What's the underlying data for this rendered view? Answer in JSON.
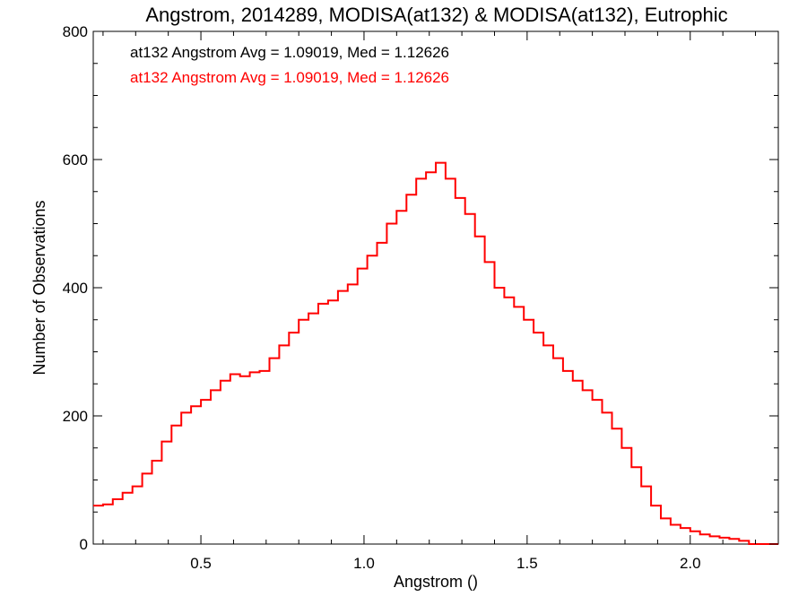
{
  "chart_data": {
    "type": "line",
    "step": true,
    "title": "Angstrom, 2014289, MODISA(at132) & MODISA(at132), Eutrophic",
    "xlabel": "Angstrom ()",
    "ylabel": "Number of Observations",
    "xlim": [
      0.17,
      2.27
    ],
    "ylim": [
      0,
      800
    ],
    "xticks": [
      0.5,
      1.0,
      1.5,
      2.0
    ],
    "xtick_labels": [
      "0.5",
      "1.0",
      "1.5",
      "2.0"
    ],
    "yticks": [
      0,
      200,
      400,
      600,
      800
    ],
    "ytick_labels": [
      "0",
      "200",
      "400",
      "600",
      "800"
    ],
    "grid": false,
    "annotations": [
      {
        "text": "at132 Angstrom Avg = 1.09019, Med = 1.12626",
        "color": "#000000"
      },
      {
        "text": "at132 Angstrom Avg = 1.09019, Med = 1.12626",
        "color": "#ff0000"
      }
    ],
    "series": [
      {
        "color": "#ff0000",
        "x": [
          0.17,
          0.2,
          0.23,
          0.26,
          0.29,
          0.32,
          0.35,
          0.38,
          0.41,
          0.44,
          0.47,
          0.5,
          0.53,
          0.56,
          0.59,
          0.62,
          0.65,
          0.68,
          0.71,
          0.74,
          0.77,
          0.8,
          0.83,
          0.86,
          0.89,
          0.92,
          0.95,
          0.98,
          1.01,
          1.04,
          1.07,
          1.1,
          1.13,
          1.16,
          1.19,
          1.22,
          1.25,
          1.28,
          1.31,
          1.34,
          1.37,
          1.4,
          1.43,
          1.46,
          1.49,
          1.52,
          1.55,
          1.58,
          1.61,
          1.64,
          1.67,
          1.7,
          1.73,
          1.76,
          1.79,
          1.82,
          1.85,
          1.88,
          1.91,
          1.94,
          1.97,
          2.0,
          2.03,
          2.06,
          2.09,
          2.12,
          2.15,
          2.18,
          2.21,
          2.24,
          2.27
        ],
        "y": [
          60,
          62,
          70,
          80,
          90,
          110,
          130,
          160,
          185,
          205,
          215,
          225,
          240,
          255,
          265,
          262,
          268,
          270,
          290,
          310,
          330,
          350,
          360,
          375,
          380,
          395,
          405,
          430,
          450,
          470,
          500,
          520,
          545,
          570,
          580,
          595,
          570,
          540,
          515,
          480,
          440,
          400,
          385,
          370,
          350,
          330,
          310,
          290,
          270,
          255,
          240,
          225,
          205,
          180,
          150,
          120,
          90,
          60,
          40,
          30,
          25,
          20,
          15,
          12,
          10,
          8,
          5,
          0,
          0,
          0,
          0
        ]
      }
    ]
  }
}
